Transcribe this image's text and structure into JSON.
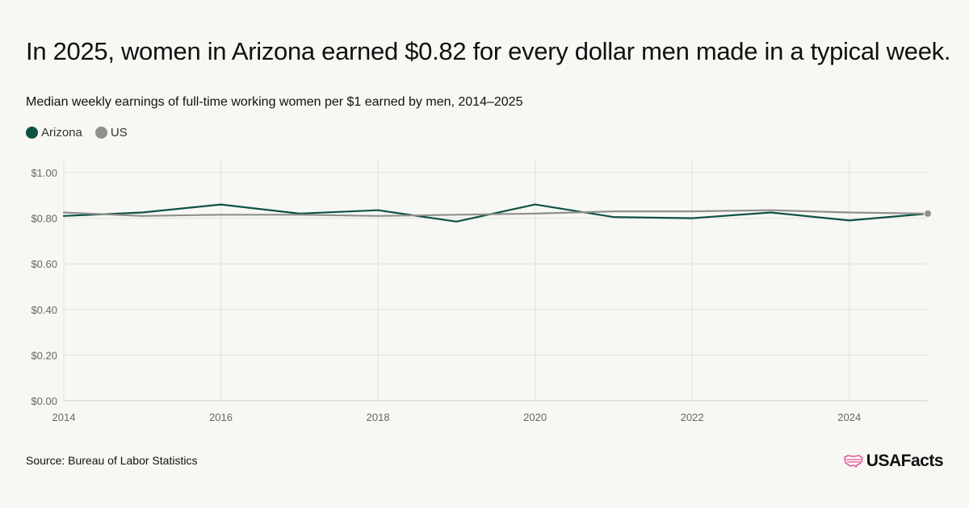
{
  "title": "In 2025, women in Arizona earned $0.82 for every dollar men made in a typical week.",
  "subtitle": "Median weekly earnings of full-time working women per $1 earned by men, 2014–2025",
  "source": "Source: Bureau of Labor Statistics",
  "brand": "USAFacts",
  "brand_icon": "us-map-icon",
  "colors": {
    "arizona": "#0e5245",
    "us": "#8f8f8b",
    "grid": "#e0e0dc",
    "axis_text": "#666666",
    "brand_pink": "#e05a9c"
  },
  "chart_data": {
    "type": "line",
    "x": [
      2014,
      2015,
      2016,
      2017,
      2018,
      2019,
      2020,
      2021,
      2022,
      2023,
      2024,
      2025
    ],
    "series": [
      {
        "name": "Arizona",
        "color": "#0e5245",
        "values": [
          0.81,
          0.825,
          0.86,
          0.82,
          0.835,
          0.785,
          0.86,
          0.805,
          0.8,
          0.825,
          0.79,
          0.82
        ]
      },
      {
        "name": "US",
        "color": "#8f8f8b",
        "values": [
          0.825,
          0.81,
          0.815,
          0.815,
          0.81,
          0.815,
          0.82,
          0.83,
          0.83,
          0.835,
          0.825,
          0.82
        ]
      }
    ],
    "x_ticks": [
      2014,
      2016,
      2018,
      2020,
      2022,
      2024
    ],
    "y_ticks": [
      "$0.00",
      "$0.20",
      "$0.40",
      "$0.60",
      "$0.80",
      "$1.00"
    ],
    "y_tick_values": [
      0,
      0.2,
      0.4,
      0.6,
      0.8,
      1.0
    ],
    "xlim": [
      2014,
      2025
    ],
    "ylim": [
      0,
      1.06
    ],
    "grid": true,
    "legend_position": "top-left",
    "end_marker_series": "US"
  }
}
